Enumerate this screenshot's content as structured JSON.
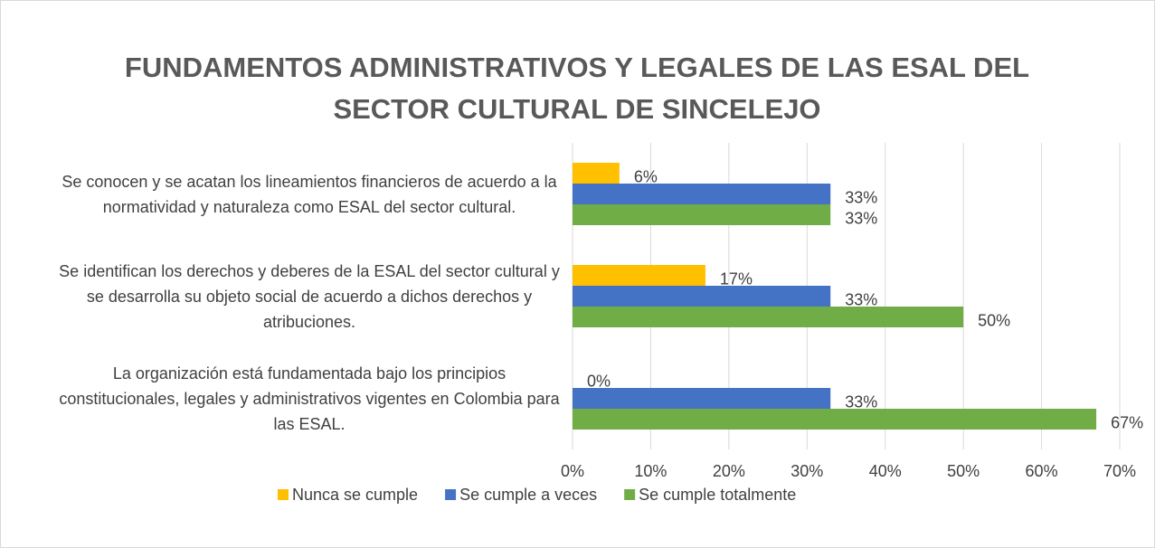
{
  "chart_data": {
    "type": "bar",
    "orientation": "horizontal",
    "title": "FUNDAMENTOS ADMINISTRATIVOS Y LEGALES DE LAS ESAL DEL SECTOR CULTURAL DE SINCELEJO",
    "categories": [
      "Se conocen y se acatan los lineamientos financieros de acuerdo a la normatividad y naturaleza como ESAL del sector cultural.",
      "Se identifican los derechos y deberes de la ESAL del sector cultural y se desarrolla su objeto social de acuerdo a dichos derechos y atribuciones.",
      "La organización está fundamentada bajo los principios constitucionales, legales y administrativos vigentes en Colombia para las ESAL."
    ],
    "series": [
      {
        "name": "Nunca se cumple",
        "color": "#ffc000",
        "values": [
          6,
          17,
          0
        ],
        "value_labels": [
          "6%",
          "17%",
          "0%"
        ]
      },
      {
        "name": "Se cumple a veces",
        "color": "#4472c4",
        "values": [
          33,
          33,
          33
        ],
        "value_labels": [
          "33%",
          "33%",
          "33%"
        ]
      },
      {
        "name": "Se cumple totalmente",
        "color": "#70ad47",
        "values": [
          33,
          50,
          67
        ],
        "value_labels": [
          "33%",
          "50%",
          "67%"
        ]
      }
    ],
    "xlim": [
      0,
      70
    ],
    "xticks": [
      {
        "value": 0,
        "label": "0%"
      },
      {
        "value": 10,
        "label": "10%"
      },
      {
        "value": 20,
        "label": "20%"
      },
      {
        "value": 30,
        "label": "30%"
      },
      {
        "value": 40,
        "label": "40%"
      },
      {
        "value": 50,
        "label": "50%"
      },
      {
        "value": 60,
        "label": "60%"
      },
      {
        "value": 70,
        "label": "70%"
      }
    ],
    "grid": true,
    "legend": "bottom"
  }
}
